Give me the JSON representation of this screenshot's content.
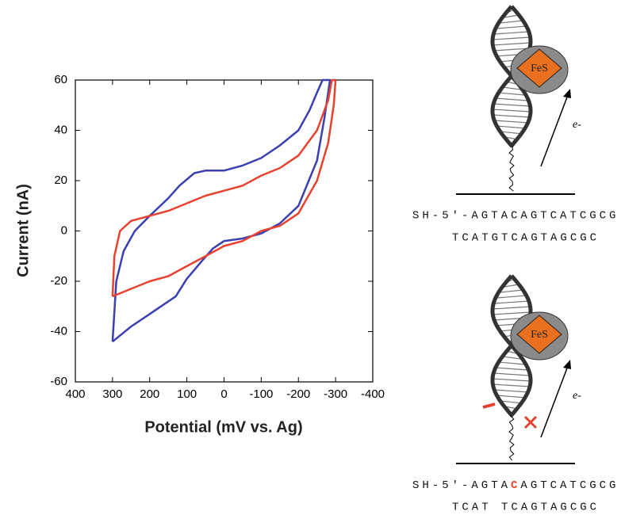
{
  "chart_data": {
    "type": "line",
    "xlabel": "Potential (mV vs. Ag)",
    "ylabel": "Current (nA)",
    "xlim": [
      400,
      -400
    ],
    "xticks": [
      400,
      300,
      200,
      100,
      0,
      -100,
      -200,
      -300,
      -400
    ],
    "ylim": [
      -60,
      60
    ],
    "yticks": [
      -60,
      -40,
      -20,
      0,
      20,
      40,
      60
    ],
    "series": [
      {
        "color": "#3b3fb0",
        "x": [
          300,
          290,
          270,
          240,
          200,
          150,
          120,
          80,
          50,
          0,
          -50,
          -100,
          -150,
          -200,
          -230,
          -250,
          -265,
          -285,
          -270,
          -250,
          -200,
          -150,
          -100,
          -50,
          0,
          30,
          60,
          100,
          130,
          150,
          200,
          250,
          300
        ],
        "values": [
          -44,
          -20,
          -8,
          0,
          6,
          13,
          18,
          23,
          24,
          24,
          26,
          29,
          34,
          40,
          48,
          55,
          60,
          60,
          45,
          28,
          10,
          3,
          -1,
          -3,
          -4,
          -7,
          -12,
          -19,
          -26,
          -28,
          -33,
          -38,
          -44
        ]
      },
      {
        "color": "#e8412f",
        "x": [
          300,
          295,
          280,
          250,
          200,
          150,
          100,
          50,
          0,
          -50,
          -100,
          -150,
          -200,
          -250,
          -280,
          -290,
          -300,
          -295,
          -280,
          -250,
          -200,
          -150,
          -100,
          -50,
          0,
          50,
          100,
          150,
          200,
          250,
          300
        ],
        "values": [
          -26,
          -10,
          0,
          4,
          6,
          8,
          11,
          14,
          16,
          18,
          22,
          25,
          30,
          40,
          52,
          60,
          60,
          50,
          35,
          20,
          7,
          2,
          0,
          -4,
          -6,
          -10,
          -14,
          -18,
          -20,
          -23,
          -26
        ]
      }
    ]
  },
  "diagrams": [
    {
      "label": "FeS",
      "electron": "e-",
      "strand": "SH-5′-AGTACAGTCATCGCG",
      "complement": "TCATGTCAGTAGCGC"
    },
    {
      "label": "FeS",
      "electron": "e-",
      "strand_prefix": "SH-5′-AGTA",
      "mismatch": "C",
      "strand_suffix": "AGTCATCGCG",
      "complement": "TCAT TCAGTAGCGC"
    }
  ]
}
